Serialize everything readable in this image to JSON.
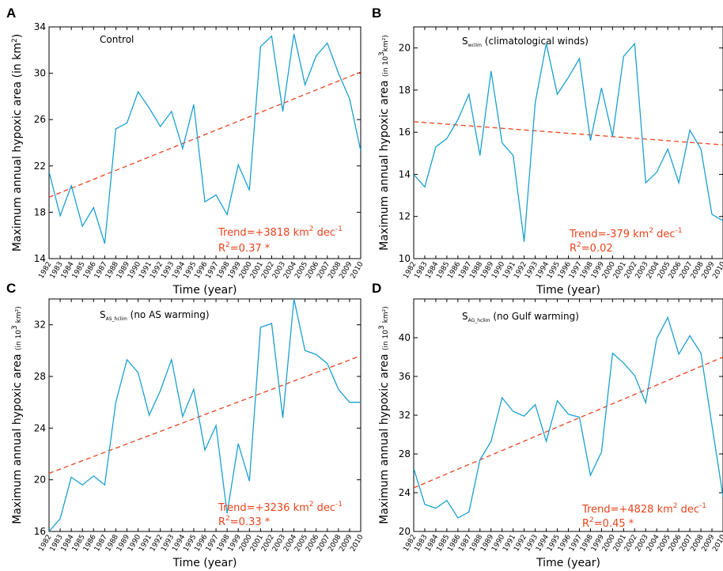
{
  "colors": {
    "series": "#1aa0d0",
    "trend": "#e8431c",
    "axis": "#000000"
  },
  "chart_data": [
    {
      "panel": "A",
      "type": "line",
      "title": "Control",
      "title_sub": "",
      "title_suffix": "",
      "xlabel": "Time (year)",
      "ylabel_main": "Maximum annual hypoxic area ",
      "ylabel_unit": "(in km",
      "ylabel_unit_sup": "2",
      "ylabel_unit_end": ")",
      "ylabel_small": false,
      "xlim": [
        1982,
        2010
      ],
      "ylim": [
        14,
        34
      ],
      "yticks": [
        14,
        18,
        22,
        26,
        30,
        34
      ],
      "x": [
        1982,
        1983,
        1984,
        1985,
        1986,
        1987,
        1988,
        1989,
        1990,
        1991,
        1992,
        1993,
        1994,
        1995,
        1996,
        1997,
        1998,
        1999,
        2000,
        2001,
        2002,
        2003,
        2004,
        2005,
        2006,
        2007,
        2008,
        2009,
        2010
      ],
      "values": [
        21.5,
        17.7,
        20.3,
        16.8,
        18.4,
        15.3,
        25.2,
        25.7,
        28.4,
        27.0,
        25.4,
        26.7,
        23.5,
        27.3,
        18.9,
        19.5,
        17.8,
        22.1,
        19.9,
        32.3,
        33.2,
        26.7,
        33.4,
        29.0,
        31.5,
        32.6,
        30.0,
        27.8,
        23.3
      ],
      "trend_line": [
        [
          1982,
          19.3
        ],
        [
          2010,
          30.1
        ]
      ],
      "trend_label": "Trend=+3818 km",
      "trend_label_sup": "2",
      "trend_label_mid": " dec",
      "trend_label_sup2": "-1",
      "r2_label": "R",
      "r2_sup": "2",
      "r2_value": "=0.37 *"
    },
    {
      "panel": "B",
      "type": "line",
      "title": "S",
      "title_sub": "wclim",
      "title_suffix": " (climatological winds)",
      "xlabel": "Time (year)",
      "ylabel_main": "Maximum annual hypoxic area ",
      "ylabel_unit": "(in 10",
      "ylabel_unit_sup": "3",
      "ylabel_unit_end": "km²)",
      "ylabel_small": true,
      "xlim": [
        1982,
        2010
      ],
      "ylim": [
        10,
        21
      ],
      "yticks": [
        10,
        12,
        14,
        16,
        18,
        20
      ],
      "x": [
        1982,
        1983,
        1984,
        1985,
        1986,
        1987,
        1988,
        1989,
        1990,
        1991,
        1992,
        1993,
        1994,
        1995,
        1996,
        1997,
        1998,
        1999,
        2000,
        2001,
        2002,
        2003,
        2004,
        2005,
        2006,
        2007,
        2008,
        2009,
        2010
      ],
      "values": [
        14.0,
        13.4,
        15.3,
        15.7,
        16.6,
        17.8,
        14.9,
        18.9,
        15.5,
        14.9,
        10.8,
        17.4,
        20.2,
        17.8,
        18.6,
        19.5,
        15.6,
        18.1,
        15.8,
        19.6,
        20.2,
        13.6,
        14.1,
        15.2,
        13.6,
        16.1,
        15.2,
        12.1,
        11.8
      ],
      "trend_line": [
        [
          1982,
          16.5
        ],
        [
          2010,
          15.4
        ]
      ],
      "trend_label": "Trend=-379 km",
      "trend_label_sup": "2",
      "trend_label_mid": " dec",
      "trend_label_sup2": "-1",
      "r2_label": "R",
      "r2_sup": "2",
      "r2_value": "=0.02"
    },
    {
      "panel": "C",
      "type": "line",
      "title": "S",
      "title_sub": "AS_hclim",
      "title_suffix": " (no AS warming)",
      "xlabel": "Time (year)",
      "ylabel_main": "Maximum annual hypoxic area ",
      "ylabel_unit": "(in 10",
      "ylabel_unit_sup": "3",
      "ylabel_unit_end": " km²)",
      "ylabel_small": true,
      "xlim": [
        1982,
        2010
      ],
      "ylim": [
        16,
        34
      ],
      "yticks": [
        16,
        20,
        24,
        28,
        32
      ],
      "x": [
        1982,
        1983,
        1984,
        1985,
        1986,
        1987,
        1988,
        1989,
        1990,
        1991,
        1992,
        1993,
        1994,
        1995,
        1996,
        1997,
        1998,
        1999,
        2000,
        2001,
        2002,
        2003,
        2004,
        2005,
        2006,
        2007,
        2008,
        2009,
        2010
      ],
      "values": [
        16.0,
        17.0,
        20.2,
        19.6,
        20.3,
        19.6,
        26.0,
        29.3,
        28.3,
        25.0,
        26.9,
        29.3,
        24.9,
        27.0,
        22.3,
        24.2,
        17.4,
        22.8,
        19.9,
        31.8,
        32.1,
        24.8,
        34.0,
        30.0,
        29.7,
        29.0,
        27.0,
        26.0,
        26.0
      ],
      "trend_line": [
        [
          1982,
          20.5
        ],
        [
          2010,
          29.6
        ]
      ],
      "trend_label": "Trend=+3236 km",
      "trend_label_sup": "2",
      "trend_label_mid": " dec",
      "trend_label_sup2": "-1",
      "r2_label": "R",
      "r2_sup": "2",
      "r2_value": "=0.33 *"
    },
    {
      "panel": "D",
      "type": "line",
      "title": "S",
      "title_sub": "AG_hclim",
      "title_suffix": " (no Gulf warming)",
      "xlabel": "Time (year)",
      "ylabel_main": "Maximum annual hypoxic area ",
      "ylabel_unit": "(in 10",
      "ylabel_unit_sup": "3",
      "ylabel_unit_end": " km²)",
      "ylabel_small": true,
      "xlim": [
        1982,
        2010
      ],
      "ylim": [
        20,
        44
      ],
      "yticks": [
        20,
        24,
        28,
        32,
        36,
        40
      ],
      "x": [
        1982,
        1983,
        1984,
        1985,
        1986,
        1987,
        1988,
        1989,
        1990,
        1991,
        1992,
        1993,
        1994,
        1995,
        1996,
        1997,
        1998,
        1999,
        2000,
        2001,
        2002,
        2003,
        2004,
        2005,
        2006,
        2007,
        2008,
        2009,
        2010
      ],
      "values": [
        26.5,
        22.8,
        22.4,
        23.2,
        21.4,
        22.0,
        27.4,
        29.3,
        33.8,
        32.4,
        31.9,
        33.1,
        29.3,
        33.5,
        32.1,
        31.8,
        25.8,
        28.2,
        38.4,
        37.4,
        36.1,
        33.3,
        39.9,
        42.1,
        38.3,
        40.2,
        38.4,
        31.0,
        23.6
      ],
      "trend_line": [
        [
          1982,
          24.5
        ],
        [
          2010,
          38.0
        ]
      ],
      "trend_label": "Trend=+4828 km",
      "trend_label_sup": "2",
      "trend_label_mid": " dec",
      "trend_label_sup2": "-1",
      "r2_label": "R",
      "r2_sup": "2",
      "r2_value": "=0.45 *"
    }
  ]
}
